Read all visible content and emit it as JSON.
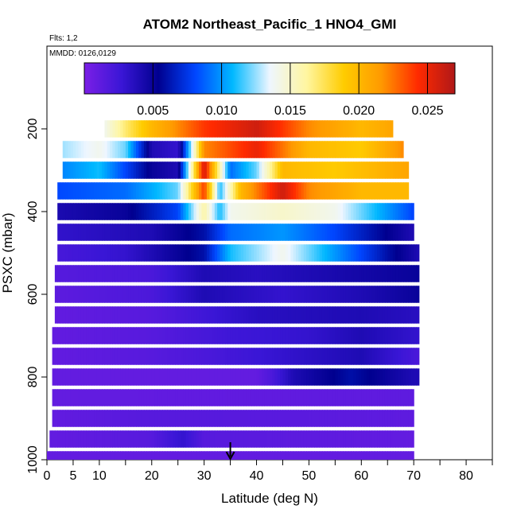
{
  "chart_data": {
    "type": "heatmap",
    "title": "ATOM2 Northeast_Pacific_1 HNO4_GMI",
    "flights_label": "Flts: 1,2",
    "date_label": "MMDD: 0126,0129",
    "xlabel": "Latitude (deg N)",
    "ylabel": "PSXC (mbar)",
    "xlim": [
      0,
      85
    ],
    "ylim": [
      1000,
      0
    ],
    "x_ticks": [
      0,
      5,
      10,
      20,
      30,
      40,
      50,
      60,
      70,
      80
    ],
    "x_minor_ticks": [
      15,
      25,
      35,
      45,
      55,
      65,
      75,
      85
    ],
    "y_ticks": [
      200,
      400,
      600,
      800,
      1000
    ],
    "colorbar": {
      "range": [
        0,
        0.027
      ],
      "tick_values": [
        0.005,
        0.01,
        0.015,
        0.02,
        0.025
      ],
      "tick_labels": [
        "0.005",
        "0.010",
        "0.015",
        "0.020",
        "0.025"
      ],
      "colors": [
        "#7b1fe6",
        "#3a16d6",
        "#00008f",
        "#0046ff",
        "#00b8ff",
        "#eef6ff",
        "#fff6a0",
        "#ffcc00",
        "#ff9a00",
        "#ff2a00",
        "#b01818"
      ]
    },
    "arrow_latitude": 35,
    "rows": [
      {
        "pressure": 1000,
        "lat_range": [
          0,
          70
        ],
        "values": [
          [
            0,
            0.001
          ],
          [
            70,
            0.001
          ]
        ]
      },
      {
        "pressure": 950,
        "lat_range": [
          0.5,
          70
        ],
        "values": [
          [
            0,
            0.001
          ],
          [
            20,
            0.0015
          ],
          [
            26,
            0.003
          ],
          [
            30,
            0.0015
          ],
          [
            70,
            0.001
          ]
        ]
      },
      {
        "pressure": 900,
        "lat_range": [
          1,
          70
        ],
        "values": [
          [
            0,
            0.001
          ],
          [
            18,
            0.0015
          ],
          [
            30,
            0.0015
          ],
          [
            70,
            0.0012
          ]
        ]
      },
      {
        "pressure": 850,
        "lat_range": [
          1,
          70
        ],
        "values": [
          [
            0,
            0.001
          ],
          [
            70,
            0.0012
          ]
        ]
      },
      {
        "pressure": 800,
        "lat_range": [
          1,
          71
        ],
        "values": [
          [
            0,
            0.001
          ],
          [
            40,
            0.001
          ],
          [
            43,
            0.002
          ],
          [
            47,
            0.004
          ],
          [
            58,
            0.006
          ],
          [
            70,
            0.004
          ]
        ]
      },
      {
        "pressure": 750,
        "lat_range": [
          1,
          71
        ],
        "values": [
          [
            0,
            0.001
          ],
          [
            20,
            0.0015
          ],
          [
            30,
            0.002
          ],
          [
            45,
            0.003
          ],
          [
            60,
            0.004
          ],
          [
            71,
            0.002
          ]
        ]
      },
      {
        "pressure": 700,
        "lat_range": [
          1,
          71
        ],
        "values": [
          [
            0,
            0.001
          ],
          [
            20,
            0.0015
          ],
          [
            35,
            0.0025
          ],
          [
            50,
            0.003
          ],
          [
            60,
            0.004
          ],
          [
            71,
            0.003
          ]
        ]
      },
      {
        "pressure": 650,
        "lat_range": [
          1.5,
          71
        ],
        "values": [
          [
            0,
            0.001
          ],
          [
            20,
            0.0015
          ],
          [
            25,
            0.002
          ],
          [
            40,
            0.0035
          ],
          [
            60,
            0.004
          ],
          [
            71,
            0.0035
          ]
        ]
      },
      {
        "pressure": 600,
        "lat_range": [
          1.5,
          71
        ],
        "values": [
          [
            0,
            0.0012
          ],
          [
            20,
            0.002
          ],
          [
            30,
            0.004
          ],
          [
            45,
            0.003
          ],
          [
            60,
            0.004
          ],
          [
            71,
            0.005
          ]
        ]
      },
      {
        "pressure": 550,
        "lat_range": [
          1.5,
          71
        ],
        "values": [
          [
            0,
            0.0015
          ],
          [
            20,
            0.002
          ],
          [
            30,
            0.004
          ],
          [
            40,
            0.0035
          ],
          [
            50,
            0.004
          ],
          [
            60,
            0.0045
          ],
          [
            71,
            0.005
          ]
        ]
      },
      {
        "pressure": 500,
        "lat_range": [
          2,
          71
        ],
        "values": [
          [
            0,
            0.002
          ],
          [
            15,
            0.003
          ],
          [
            30,
            0.006
          ],
          [
            35,
            0.011
          ],
          [
            45,
            0.014
          ],
          [
            55,
            0.01
          ],
          [
            65,
            0.006
          ],
          [
            71,
            0.004
          ]
        ]
      },
      {
        "pressure": 450,
        "lat_range": [
          2,
          70
        ],
        "values": [
          [
            0,
            0.003
          ],
          [
            20,
            0.004
          ],
          [
            30,
            0.006
          ],
          [
            35,
            0.009
          ],
          [
            45,
            0.01
          ],
          [
            55,
            0.008
          ],
          [
            70,
            0.004
          ]
        ]
      },
      {
        "pressure": 400,
        "lat_range": [
          2,
          70
        ],
        "values": [
          [
            0,
            0.004
          ],
          [
            15,
            0.005
          ],
          [
            25,
            0.008
          ],
          [
            30,
            0.016
          ],
          [
            33,
            0.011
          ],
          [
            35,
            0.014
          ],
          [
            45,
            0.015
          ],
          [
            55,
            0.014
          ],
          [
            65,
            0.01
          ],
          [
            70,
            0.008
          ]
        ]
      },
      {
        "pressure": 350,
        "lat_range": [
          2,
          69
        ],
        "values": [
          [
            0,
            0.008
          ],
          [
            15,
            0.009
          ],
          [
            25,
            0.012
          ],
          [
            30,
            0.024
          ],
          [
            33,
            0.011
          ],
          [
            37,
            0.02
          ],
          [
            45,
            0.026
          ],
          [
            50,
            0.022
          ],
          [
            60,
            0.02
          ],
          [
            69,
            0.02
          ]
        ]
      },
      {
        "pressure": 300,
        "lat_range": [
          3,
          69
        ],
        "values": [
          [
            0,
            0.009
          ],
          [
            10,
            0.011
          ],
          [
            20,
            0.005
          ],
          [
            25,
            0.004
          ],
          [
            30,
            0.026
          ],
          [
            35,
            0.009
          ],
          [
            40,
            0.012
          ],
          [
            45,
            0.02
          ],
          [
            55,
            0.019
          ],
          [
            69,
            0.021
          ]
        ]
      },
      {
        "pressure": 250,
        "lat_range": [
          3,
          68
        ],
        "values": [
          [
            0,
            0.012
          ],
          [
            10,
            0.014
          ],
          [
            15,
            0.012
          ],
          [
            20,
            0.004
          ],
          [
            25,
            0.003
          ],
          [
            30,
            0.022
          ],
          [
            40,
            0.025
          ],
          [
            50,
            0.02
          ],
          [
            60,
            0.019
          ],
          [
            68,
            0.022
          ]
        ]
      },
      {
        "pressure": 200,
        "lat_range": [
          11,
          66
        ],
        "values": [
          [
            11,
            0.014
          ],
          [
            15,
            0.017
          ],
          [
            20,
            0.02
          ],
          [
            30,
            0.024
          ],
          [
            40,
            0.026
          ],
          [
            50,
            0.022
          ],
          [
            60,
            0.02
          ],
          [
            66,
            0.021
          ]
        ]
      }
    ]
  }
}
